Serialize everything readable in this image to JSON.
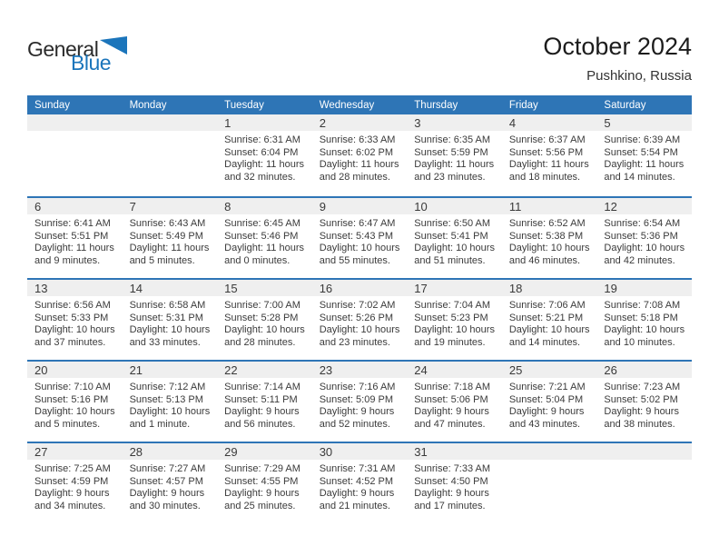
{
  "logo": {
    "text_top": "General",
    "text_bottom": "Blue",
    "triangle_color": "#1b75bb"
  },
  "header": {
    "title": "October 2024",
    "location": "Pushkino, Russia"
  },
  "colors": {
    "header_bg": "#2e75b6",
    "band_bg": "#efefef",
    "separator": "#2e75b6"
  },
  "weekdays": [
    "Sunday",
    "Monday",
    "Tuesday",
    "Wednesday",
    "Thursday",
    "Friday",
    "Saturday"
  ],
  "weeks": [
    [
      null,
      null,
      {
        "day": "1",
        "sunrise": "Sunrise: 6:31 AM",
        "sunset": "Sunset: 6:04 PM",
        "daylight1": "Daylight: 11 hours",
        "daylight2": "and 32 minutes."
      },
      {
        "day": "2",
        "sunrise": "Sunrise: 6:33 AM",
        "sunset": "Sunset: 6:02 PM",
        "daylight1": "Daylight: 11 hours",
        "daylight2": "and 28 minutes."
      },
      {
        "day": "3",
        "sunrise": "Sunrise: 6:35 AM",
        "sunset": "Sunset: 5:59 PM",
        "daylight1": "Daylight: 11 hours",
        "daylight2": "and 23 minutes."
      },
      {
        "day": "4",
        "sunrise": "Sunrise: 6:37 AM",
        "sunset": "Sunset: 5:56 PM",
        "daylight1": "Daylight: 11 hours",
        "daylight2": "and 18 minutes."
      },
      {
        "day": "5",
        "sunrise": "Sunrise: 6:39 AM",
        "sunset": "Sunset: 5:54 PM",
        "daylight1": "Daylight: 11 hours",
        "daylight2": "and 14 minutes."
      }
    ],
    [
      {
        "day": "6",
        "sunrise": "Sunrise: 6:41 AM",
        "sunset": "Sunset: 5:51 PM",
        "daylight1": "Daylight: 11 hours",
        "daylight2": "and 9 minutes."
      },
      {
        "day": "7",
        "sunrise": "Sunrise: 6:43 AM",
        "sunset": "Sunset: 5:49 PM",
        "daylight1": "Daylight: 11 hours",
        "daylight2": "and 5 minutes."
      },
      {
        "day": "8",
        "sunrise": "Sunrise: 6:45 AM",
        "sunset": "Sunset: 5:46 PM",
        "daylight1": "Daylight: 11 hours",
        "daylight2": "and 0 minutes."
      },
      {
        "day": "9",
        "sunrise": "Sunrise: 6:47 AM",
        "sunset": "Sunset: 5:43 PM",
        "daylight1": "Daylight: 10 hours",
        "daylight2": "and 55 minutes."
      },
      {
        "day": "10",
        "sunrise": "Sunrise: 6:50 AM",
        "sunset": "Sunset: 5:41 PM",
        "daylight1": "Daylight: 10 hours",
        "daylight2": "and 51 minutes."
      },
      {
        "day": "11",
        "sunrise": "Sunrise: 6:52 AM",
        "sunset": "Sunset: 5:38 PM",
        "daylight1": "Daylight: 10 hours",
        "daylight2": "and 46 minutes."
      },
      {
        "day": "12",
        "sunrise": "Sunrise: 6:54 AM",
        "sunset": "Sunset: 5:36 PM",
        "daylight1": "Daylight: 10 hours",
        "daylight2": "and 42 minutes."
      }
    ],
    [
      {
        "day": "13",
        "sunrise": "Sunrise: 6:56 AM",
        "sunset": "Sunset: 5:33 PM",
        "daylight1": "Daylight: 10 hours",
        "daylight2": "and 37 minutes."
      },
      {
        "day": "14",
        "sunrise": "Sunrise: 6:58 AM",
        "sunset": "Sunset: 5:31 PM",
        "daylight1": "Daylight: 10 hours",
        "daylight2": "and 33 minutes."
      },
      {
        "day": "15",
        "sunrise": "Sunrise: 7:00 AM",
        "sunset": "Sunset: 5:28 PM",
        "daylight1": "Daylight: 10 hours",
        "daylight2": "and 28 minutes."
      },
      {
        "day": "16",
        "sunrise": "Sunrise: 7:02 AM",
        "sunset": "Sunset: 5:26 PM",
        "daylight1": "Daylight: 10 hours",
        "daylight2": "and 23 minutes."
      },
      {
        "day": "17",
        "sunrise": "Sunrise: 7:04 AM",
        "sunset": "Sunset: 5:23 PM",
        "daylight1": "Daylight: 10 hours",
        "daylight2": "and 19 minutes."
      },
      {
        "day": "18",
        "sunrise": "Sunrise: 7:06 AM",
        "sunset": "Sunset: 5:21 PM",
        "daylight1": "Daylight: 10 hours",
        "daylight2": "and 14 minutes."
      },
      {
        "day": "19",
        "sunrise": "Sunrise: 7:08 AM",
        "sunset": "Sunset: 5:18 PM",
        "daylight1": "Daylight: 10 hours",
        "daylight2": "and 10 minutes."
      }
    ],
    [
      {
        "day": "20",
        "sunrise": "Sunrise: 7:10 AM",
        "sunset": "Sunset: 5:16 PM",
        "daylight1": "Daylight: 10 hours",
        "daylight2": "and 5 minutes."
      },
      {
        "day": "21",
        "sunrise": "Sunrise: 7:12 AM",
        "sunset": "Sunset: 5:13 PM",
        "daylight1": "Daylight: 10 hours",
        "daylight2": "and 1 minute."
      },
      {
        "day": "22",
        "sunrise": "Sunrise: 7:14 AM",
        "sunset": "Sunset: 5:11 PM",
        "daylight1": "Daylight: 9 hours",
        "daylight2": "and 56 minutes."
      },
      {
        "day": "23",
        "sunrise": "Sunrise: 7:16 AM",
        "sunset": "Sunset: 5:09 PM",
        "daylight1": "Daylight: 9 hours",
        "daylight2": "and 52 minutes."
      },
      {
        "day": "24",
        "sunrise": "Sunrise: 7:18 AM",
        "sunset": "Sunset: 5:06 PM",
        "daylight1": "Daylight: 9 hours",
        "daylight2": "and 47 minutes."
      },
      {
        "day": "25",
        "sunrise": "Sunrise: 7:21 AM",
        "sunset": "Sunset: 5:04 PM",
        "daylight1": "Daylight: 9 hours",
        "daylight2": "and 43 minutes."
      },
      {
        "day": "26",
        "sunrise": "Sunrise: 7:23 AM",
        "sunset": "Sunset: 5:02 PM",
        "daylight1": "Daylight: 9 hours",
        "daylight2": "and 38 minutes."
      }
    ],
    [
      {
        "day": "27",
        "sunrise": "Sunrise: 7:25 AM",
        "sunset": "Sunset: 4:59 PM",
        "daylight1": "Daylight: 9 hours",
        "daylight2": "and 34 minutes."
      },
      {
        "day": "28",
        "sunrise": "Sunrise: 7:27 AM",
        "sunset": "Sunset: 4:57 PM",
        "daylight1": "Daylight: 9 hours",
        "daylight2": "and 30 minutes."
      },
      {
        "day": "29",
        "sunrise": "Sunrise: 7:29 AM",
        "sunset": "Sunset: 4:55 PM",
        "daylight1": "Daylight: 9 hours",
        "daylight2": "and 25 minutes."
      },
      {
        "day": "30",
        "sunrise": "Sunrise: 7:31 AM",
        "sunset": "Sunset: 4:52 PM",
        "daylight1": "Daylight: 9 hours",
        "daylight2": "and 21 minutes."
      },
      {
        "day": "31",
        "sunrise": "Sunrise: 7:33 AM",
        "sunset": "Sunset: 4:50 PM",
        "daylight1": "Daylight: 9 hours",
        "daylight2": "and 17 minutes."
      },
      null,
      null
    ]
  ]
}
